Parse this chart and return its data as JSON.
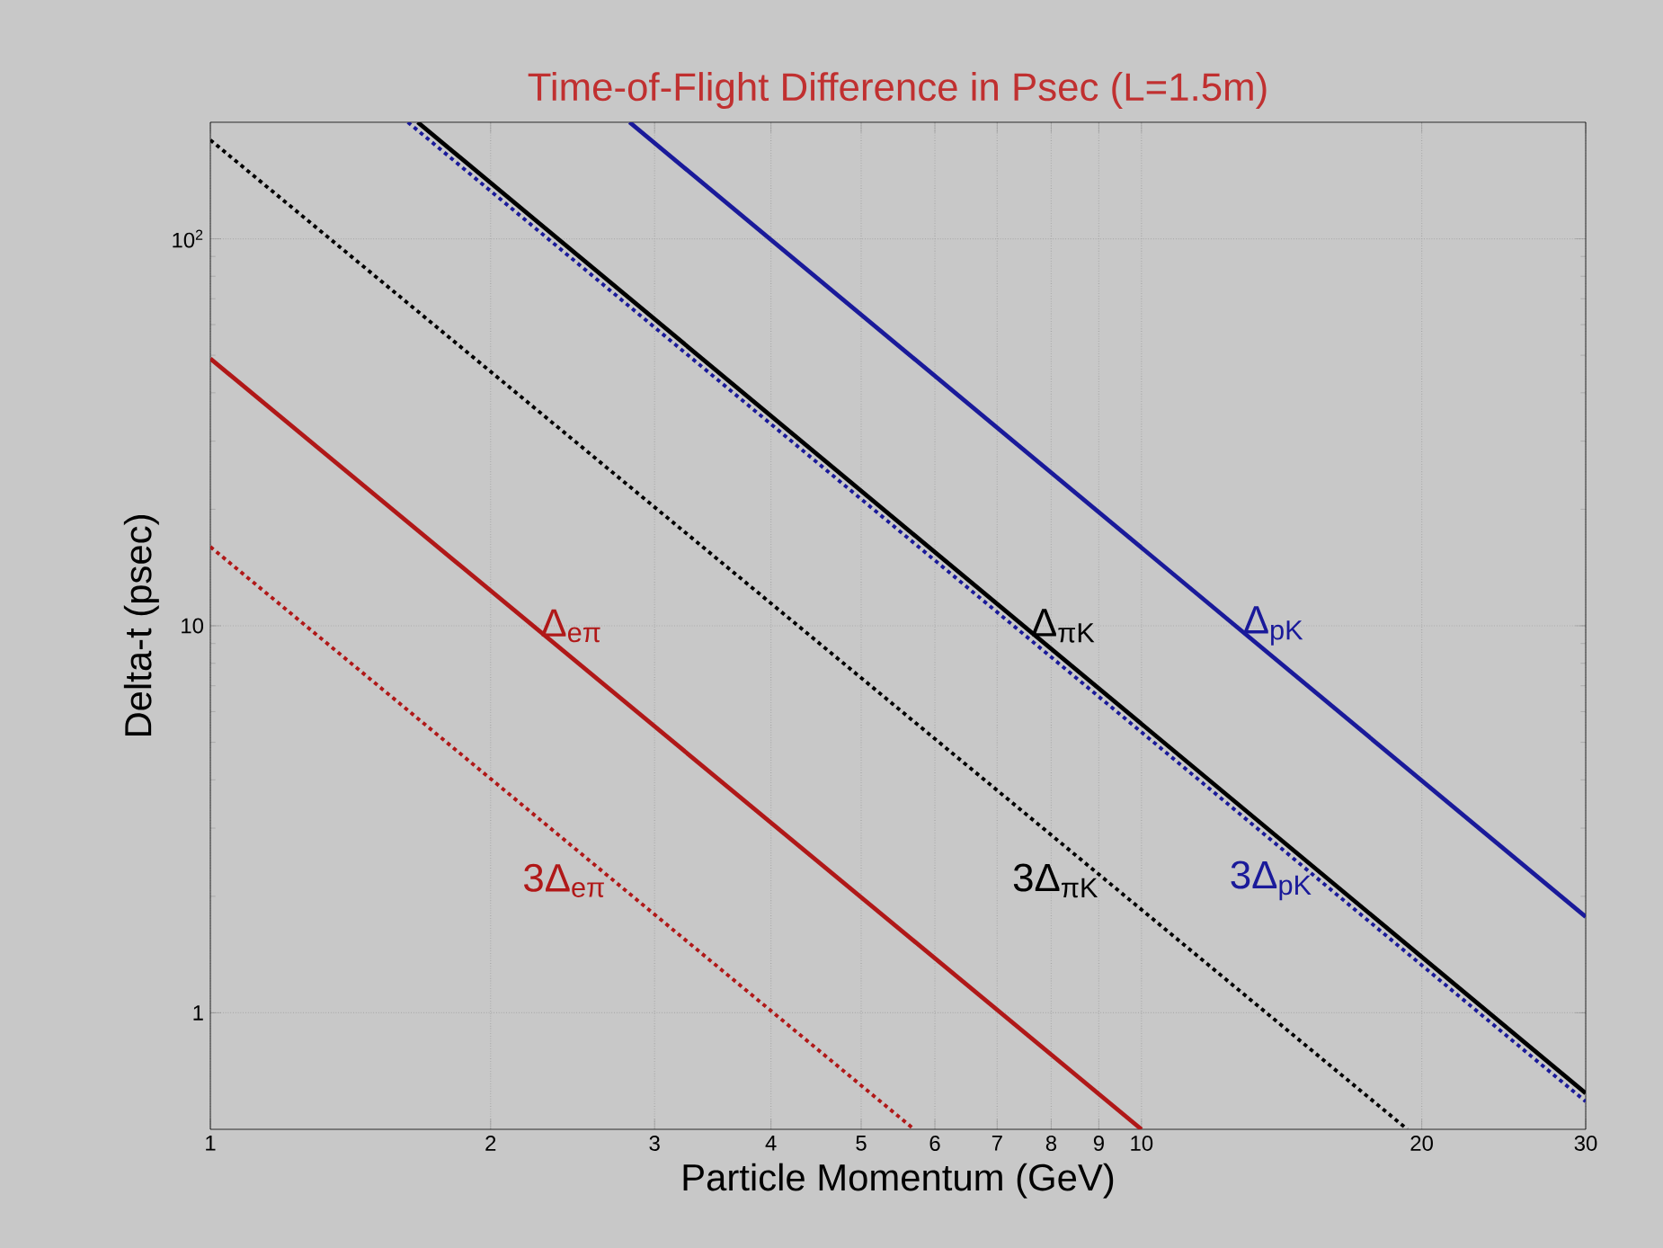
{
  "chart_data": {
    "type": "line",
    "title": "Time-of-Flight Difference in Psec (L=1.5m)",
    "xlabel": "Particle Momentum (GeV)",
    "ylabel": "Delta-t (psec)",
    "log": "xy",
    "grid": true,
    "marker": "none",
    "xlim": [
      1,
      30
    ],
    "ylim": [
      0.5,
      200
    ],
    "xticks": [
      1,
      2,
      3,
      4,
      5,
      6,
      7,
      8,
      9,
      10,
      20,
      30
    ],
    "yticks": [
      1,
      10,
      {
        "value": 100,
        "label": "10$^{2}$"
      }
    ],
    "series": [
      {
        "name": "Δ$_{eπ}$",
        "color": "#b01818",
        "line_style": "solid",
        "x": [
          1,
          10
        ],
        "values": [
          49,
          0.5
        ]
      },
      {
        "name": "3Δ$_{eπ}$",
        "color": "#b01818",
        "line_style": "dotted",
        "x": [
          1,
          5.7
        ],
        "values": [
          16,
          0.5
        ]
      },
      {
        "name": "Δ$_{πK}$",
        "color": "#000000",
        "line_style": "solid",
        "x": [
          1.67,
          30
        ],
        "values": [
          200,
          0.62
        ]
      },
      {
        "name": "3Δ$_{πK}$",
        "color": "#000000",
        "line_style": "dotted",
        "x": [
          1,
          19.3
        ],
        "values": [
          180,
          0.5
        ]
      },
      {
        "name": "Δ$_{pK}$",
        "color": "#1a1a9a",
        "line_style": "solid",
        "x": [
          2.82,
          30
        ],
        "values": [
          200,
          1.77
        ]
      },
      {
        "name": "3Δ$_{pK}$",
        "color": "#1a1a9a",
        "line_style": "dotted",
        "x": [
          1.63,
          30
        ],
        "values": [
          200,
          0.59
        ]
      }
    ]
  }
}
